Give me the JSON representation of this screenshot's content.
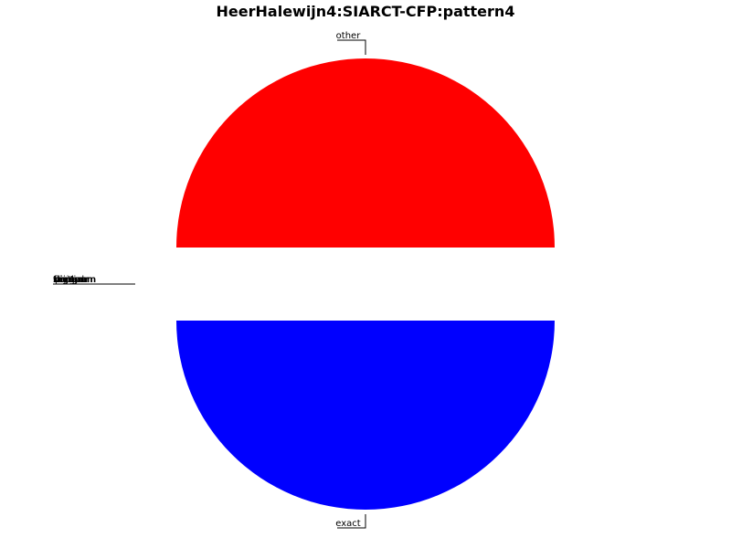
{
  "chart_data": {
    "type": "pie",
    "title": "HeerHalewijn4:SIARCT-CFP:pattern4",
    "slices": [
      {
        "label": "other",
        "value": 50,
        "color": "#ff0000"
      },
      {
        "label": "exact",
        "value": 50,
        "color": "#0000ff"
      }
    ],
    "zero_labels": [
      "trigram",
      "bigram",
      "unigram",
      "skipgram",
      "fourgram",
      "partial",
      "rhythm",
      "contour"
    ],
    "legend": "none"
  }
}
